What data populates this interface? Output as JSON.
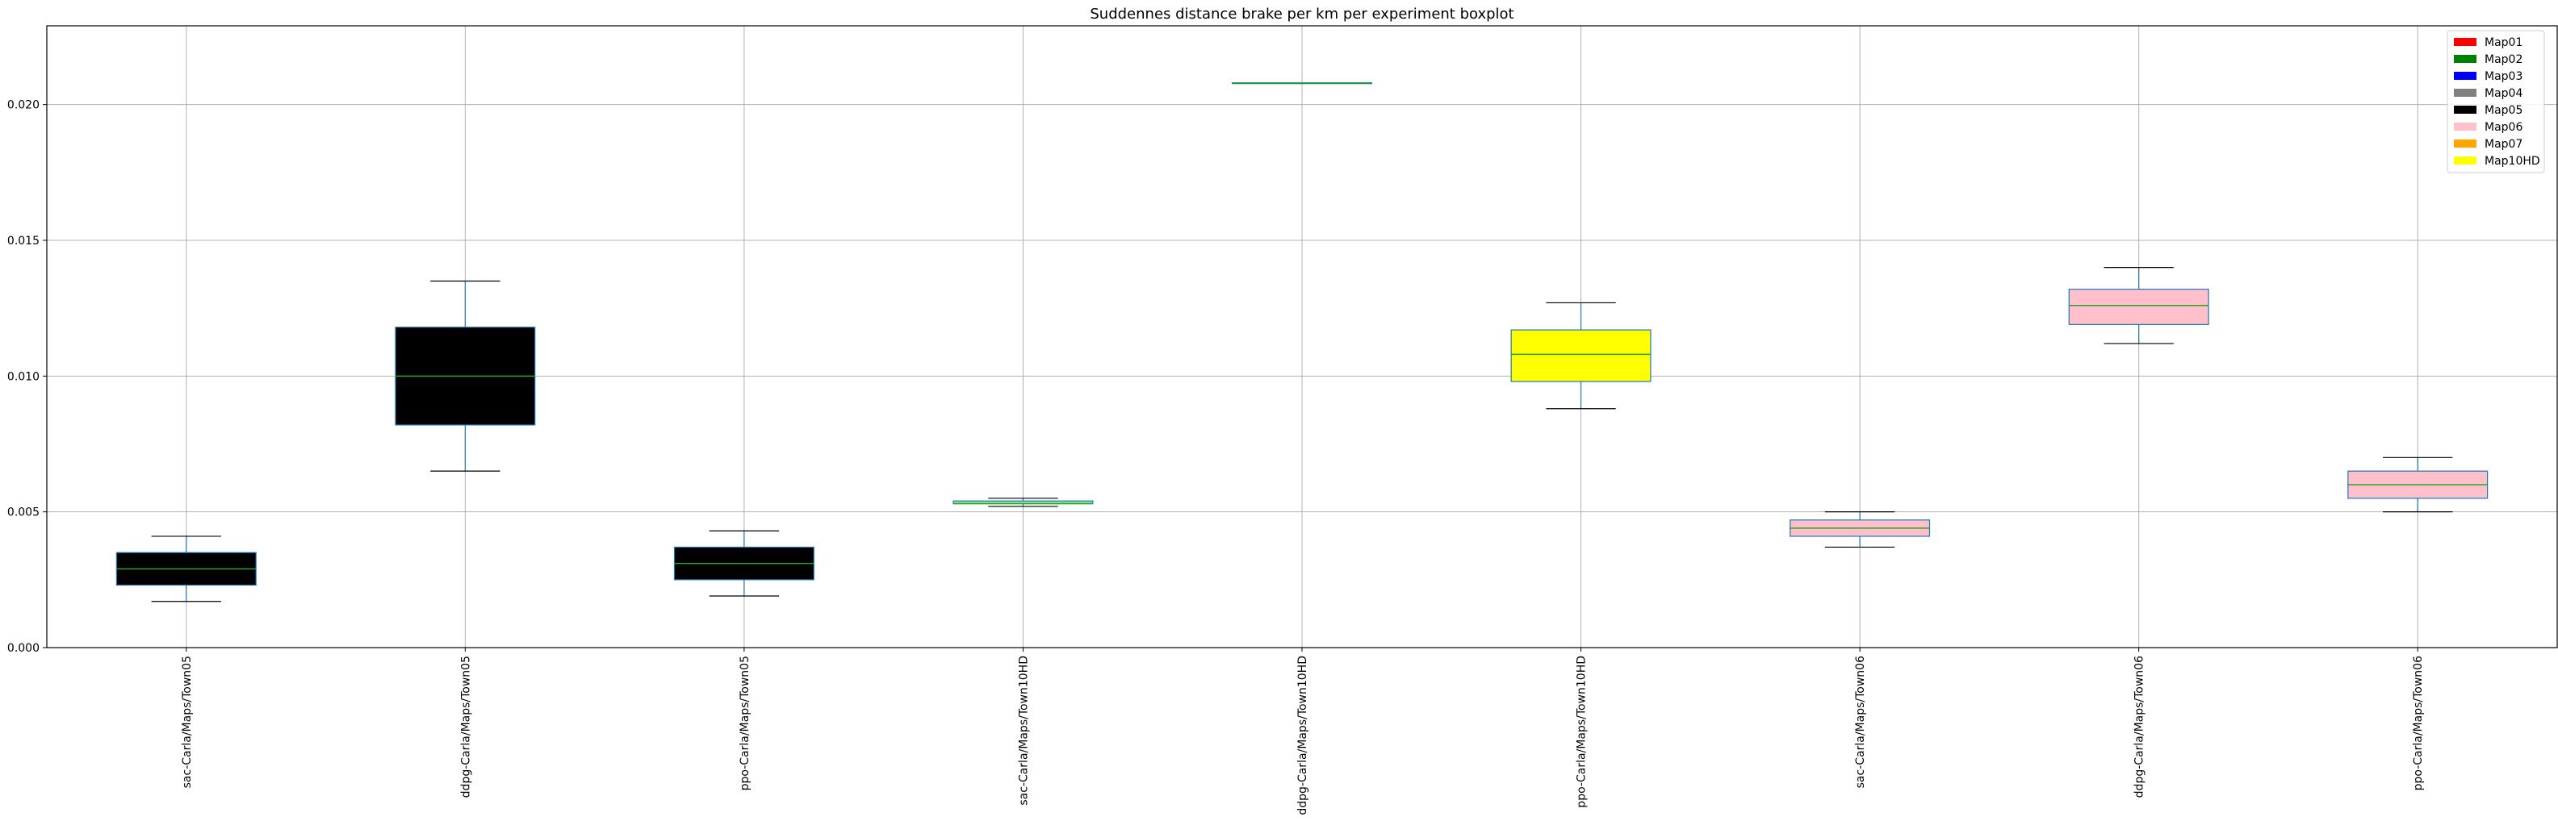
{
  "chart_data": {
    "type": "boxplot",
    "title": "Suddennes distance brake per km per experiment boxplot",
    "xlabel": "",
    "ylabel": "",
    "ylim": [
      0,
      0.0229
    ],
    "yticks": [
      0.0,
      0.005,
      0.01,
      0.015,
      0.02
    ],
    "ytick_labels": [
      "0.000",
      "0.005",
      "0.010",
      "0.015",
      "0.020"
    ],
    "grid": true,
    "legend_position": "top-right",
    "legend": [
      {
        "label": "Map01",
        "color": "#ff0000"
      },
      {
        "label": "Map02",
        "color": "#008000"
      },
      {
        "label": "Map03",
        "color": "#0000ff"
      },
      {
        "label": "Map04",
        "color": "#808080"
      },
      {
        "label": "Map05",
        "color": "#000000"
      },
      {
        "label": "Map06",
        "color": "#ffc0cb"
      },
      {
        "label": "Map07",
        "color": "#ffa500"
      },
      {
        "label": "Map10HD",
        "color": "#ffff00"
      }
    ],
    "categories": [
      "sac-Carla/Maps/Town05",
      "ddpg-Carla/Maps/Town05",
      "ppo-Carla/Maps/Town05",
      "sac-Carla/Maps/Town10HD",
      "ddpg-Carla/Maps/Town10HD",
      "ppo-Carla/Maps/Town10HD",
      "sac-Carla/Maps/Town06",
      "ddpg-Carla/Maps/Town06",
      "ppo-Carla/Maps/Town06"
    ],
    "boxes": [
      {
        "whislo": 0.0017,
        "q1": 0.0023,
        "med": 0.0029,
        "q3": 0.0035,
        "whishi": 0.0041,
        "fill": "#000000"
      },
      {
        "whislo": 0.0065,
        "q1": 0.0082,
        "med": 0.01,
        "q3": 0.0118,
        "whishi": 0.0135,
        "fill": "#000000"
      },
      {
        "whislo": 0.0019,
        "q1": 0.0025,
        "med": 0.0031,
        "q3": 0.0037,
        "whishi": 0.0043,
        "fill": "#000000"
      },
      {
        "whislo": 0.0052,
        "q1": 0.0053,
        "med": 0.0053,
        "q3": 0.0054,
        "whishi": 0.0055,
        "fill": "#90ee90"
      },
      {
        "whislo": 0.0208,
        "q1": 0.0208,
        "med": 0.0208,
        "q3": 0.0208,
        "whishi": 0.0208,
        "fill": "#90ee90"
      },
      {
        "whislo": 0.0088,
        "q1": 0.0098,
        "med": 0.0108,
        "q3": 0.0117,
        "whishi": 0.0127,
        "fill": "#ffff00"
      },
      {
        "whislo": 0.0037,
        "q1": 0.0041,
        "med": 0.0044,
        "q3": 0.0047,
        "whishi": 0.005,
        "fill": "#ffc0cb"
      },
      {
        "whislo": 0.0112,
        "q1": 0.0119,
        "med": 0.0126,
        "q3": 0.0132,
        "whishi": 0.014,
        "fill": "#ffc0cb"
      },
      {
        "whislo": 0.005,
        "q1": 0.0055,
        "med": 0.006,
        "q3": 0.0065,
        "whishi": 0.007,
        "fill": "#ffc0cb"
      }
    ],
    "box_edge_color": "#1f77b4",
    "median_color": "#2ca02c",
    "whisker_color": "#1f77b4",
    "cap_color": "#000000"
  }
}
